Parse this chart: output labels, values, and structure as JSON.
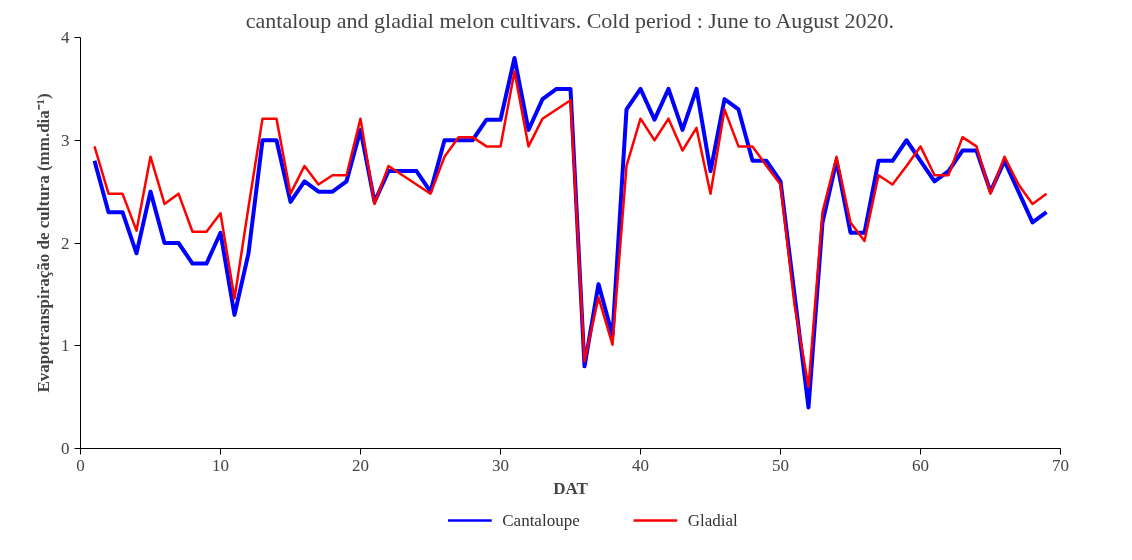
{
  "chart_data": {
    "type": "line",
    "title": "cantaloup and gladial melon cultivars. Cold period : June to August 2020.",
    "xlabel": "DAT",
    "ylabel": "Evapotranspiração de cultura (mm.dia⁻¹)",
    "x": [
      1,
      2,
      3,
      4,
      5,
      6,
      7,
      8,
      9,
      10,
      11,
      12,
      13,
      14,
      15,
      16,
      17,
      18,
      19,
      20,
      21,
      22,
      23,
      24,
      25,
      26,
      27,
      28,
      29,
      30,
      31,
      32,
      33,
      34,
      35,
      36,
      37,
      38,
      39,
      40,
      41,
      42,
      43,
      44,
      45,
      46,
      47,
      48,
      49,
      50,
      51,
      52,
      53,
      54,
      55,
      56,
      57,
      58,
      59,
      60,
      61,
      62,
      63,
      64,
      65,
      66,
      67,
      68,
      69
    ],
    "series": [
      {
        "name": "Cantaloupe",
        "color": "#0000ff",
        "values": [
          2.8,
          2.3,
          2.3,
          1.9,
          2.5,
          2.0,
          2.0,
          1.8,
          1.8,
          2.1,
          1.3,
          1.9,
          3.0,
          3.0,
          2.4,
          2.6,
          2.5,
          2.5,
          2.6,
          3.1,
          2.4,
          2.7,
          2.7,
          2.7,
          2.5,
          3.0,
          3.0,
          3.0,
          3.2,
          3.2,
          3.8,
          3.1,
          3.4,
          3.5,
          3.5,
          0.8,
          1.6,
          1.1,
          3.3,
          3.5,
          3.2,
          3.5,
          3.1,
          3.5,
          2.7,
          3.4,
          3.3,
          2.8,
          2.8,
          2.6,
          1.5,
          0.4,
          2.2,
          2.8,
          2.1,
          2.1,
          2.8,
          2.8,
          3.0,
          2.8,
          2.6,
          2.7,
          2.9,
          2.9,
          2.5,
          2.8,
          2.5,
          2.2,
          2.3
        ]
      },
      {
        "name": "Gladial",
        "color": "#ff0000",
        "values": [
          2.94,
          2.48,
          2.48,
          2.12,
          2.84,
          2.38,
          2.48,
          2.11,
          2.11,
          2.29,
          1.46,
          2.35,
          3.21,
          3.21,
          2.48,
          2.75,
          2.57,
          2.66,
          2.66,
          3.21,
          2.38,
          2.75,
          2.66,
          2.57,
          2.48,
          2.84,
          3.03,
          3.03,
          2.94,
          2.94,
          3.67,
          2.94,
          3.21,
          3.3,
          3.39,
          0.85,
          1.47,
          1.01,
          2.75,
          3.21,
          3.0,
          3.21,
          2.9,
          3.12,
          2.48,
          3.3,
          2.94,
          2.94,
          2.75,
          2.57,
          1.4,
          0.6,
          2.3,
          2.84,
          2.2,
          2.02,
          2.66,
          2.57,
          2.75,
          2.94,
          2.66,
          2.66,
          3.03,
          2.94,
          2.48,
          2.84,
          2.57,
          2.38,
          2.48
        ]
      }
    ],
    "xlim": [
      0,
      70
    ],
    "ylim": [
      0,
      4
    ],
    "xticks": [
      0,
      10,
      20,
      30,
      40,
      50,
      60,
      70
    ],
    "yticks": [
      0,
      1,
      2,
      3,
      4
    ],
    "grid": false,
    "legend": "bottom",
    "marker": "none",
    "line_style": "solid"
  }
}
